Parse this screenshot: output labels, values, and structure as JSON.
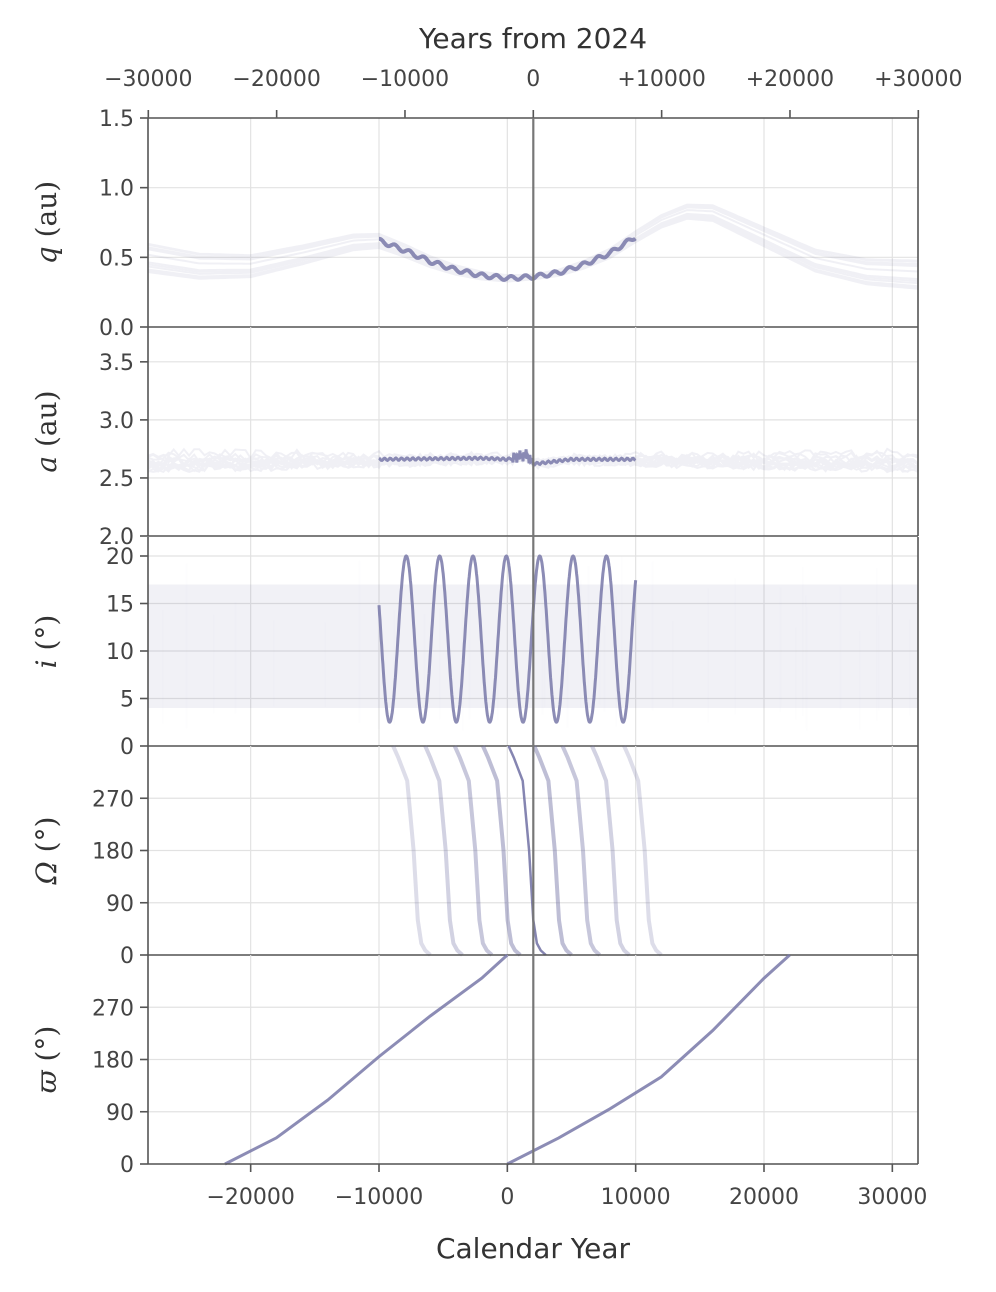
{
  "chart_data": {
    "type": "line",
    "top_axis": {
      "title": "Years from 2024",
      "offset": 2024,
      "ticks": [
        -30000,
        -20000,
        -10000,
        0,
        10000,
        20000,
        30000
      ],
      "tick_labels": [
        "−30000",
        "−20000",
        "−10000",
        "0",
        "+10000",
        "+20000",
        "+30000"
      ]
    },
    "x_axis": {
      "title": "Calendar Year",
      "range": [
        -28000,
        32000
      ],
      "ticks": [
        -20000,
        -10000,
        0,
        10000,
        20000,
        30000
      ],
      "tick_labels": [
        "−20000",
        "−10000",
        "0",
        "10000",
        "20000",
        "30000"
      ]
    },
    "reference_line_x": 2024,
    "grid": true,
    "color": "#7878a8",
    "panels": [
      {
        "id": "q",
        "ylabel": "q (au)",
        "ylabel_var": "q",
        "ylabel_unit": " (au)",
        "ylim": [
          0,
          1.5
        ],
        "yticks": [
          0,
          0.5,
          1.0,
          1.5
        ],
        "ytick_labels": [
          "0.0",
          "0.5",
          "1.0",
          "1.5"
        ],
        "series": [
          {
            "x": [
              -28000,
              -24000,
              -20000,
              -16000,
              -12000,
              -10000,
              -8000,
              -6000,
              -4000,
              -2000,
              0,
              2024,
              4000,
              6000,
              8000,
              10000,
              12000,
              14000,
              16000,
              20000,
              24000,
              28000,
              32000
            ],
            "y": [
              0.5,
              0.44,
              0.44,
              0.52,
              0.61,
              0.62,
              0.55,
              0.47,
              0.41,
              0.37,
              0.35,
              0.36,
              0.39,
              0.45,
              0.53,
              0.65,
              0.76,
              0.83,
              0.82,
              0.65,
              0.48,
              0.4,
              0.38
            ]
          }
        ]
      },
      {
        "id": "a",
        "ylabel": "a (au)",
        "ylabel_var": "a",
        "ylabel_unit": " (au)",
        "ylim": [
          2.0,
          3.8
        ],
        "yticks": [
          2.0,
          2.5,
          3.0,
          3.5
        ],
        "ytick_labels": [
          "2.0",
          "2.5",
          "3.0",
          "3.5"
        ],
        "series": [
          {
            "x": [
              -28000,
              -20000,
              -10000,
              -2000,
              0,
              1500,
              2024,
              5000,
              10000,
              20000,
              32000
            ],
            "y": [
              2.65,
              2.65,
              2.66,
              2.67,
              2.66,
              2.7,
              2.62,
              2.66,
              2.66,
              2.65,
              2.65
            ]
          }
        ]
      },
      {
        "id": "i",
        "ylabel": "i (°)",
        "ylabel_var": "i",
        "ylabel_unit": " (°)",
        "ylim": [
          0,
          22
        ],
        "yticks": [
          0,
          5,
          10,
          15,
          20
        ],
        "ytick_labels": [
          "0",
          "5",
          "10",
          "15",
          "20"
        ],
        "series": [
          {
            "x": [
              -10000,
              10000
            ],
            "y_min": 2.5,
            "y_max": 20,
            "period_years": 2600
          },
          {
            "x": [
              -28000,
              32000
            ],
            "y_min": 4,
            "y_max": 17,
            "band": true
          }
        ]
      },
      {
        "id": "Omega",
        "ylabel": "Ω (°)",
        "ylabel_var": "Ω",
        "ylabel_unit": " (°)",
        "ylim": [
          0,
          360
        ],
        "yticks": [
          0,
          90,
          180,
          270
        ],
        "ytick_labels": [
          "0",
          "90",
          "180",
          "270"
        ],
        "series": [
          {
            "x": [
              100,
              500,
              1200,
              1700,
              2024,
              2300,
              2600,
              3000
            ],
            "y": [
              360,
              340,
              300,
              180,
              60,
              20,
              8,
              0
            ]
          }
        ]
      },
      {
        "id": "varpi",
        "ylabel": "ϖ (°)",
        "ylabel_var": "ϖ",
        "ylabel_unit": " (°)",
        "ylim": [
          0,
          360
        ],
        "yticks": [
          0,
          90,
          180,
          270
        ],
        "ytick_labels": [
          "0",
          "90",
          "180",
          "270"
        ],
        "series": [
          {
            "x": [
              0,
              4000,
              8000,
              12000,
              16000,
              20000,
              22000
            ],
            "y": [
              0,
              45,
              95,
              150,
              230,
              320,
              360
            ]
          },
          {
            "x": [
              -22000,
              -18000,
              -14000,
              -10000,
              -6000,
              -2000,
              0
            ],
            "y": [
              0,
              45,
              110,
              185,
              255,
              320,
              360
            ]
          }
        ]
      }
    ]
  }
}
